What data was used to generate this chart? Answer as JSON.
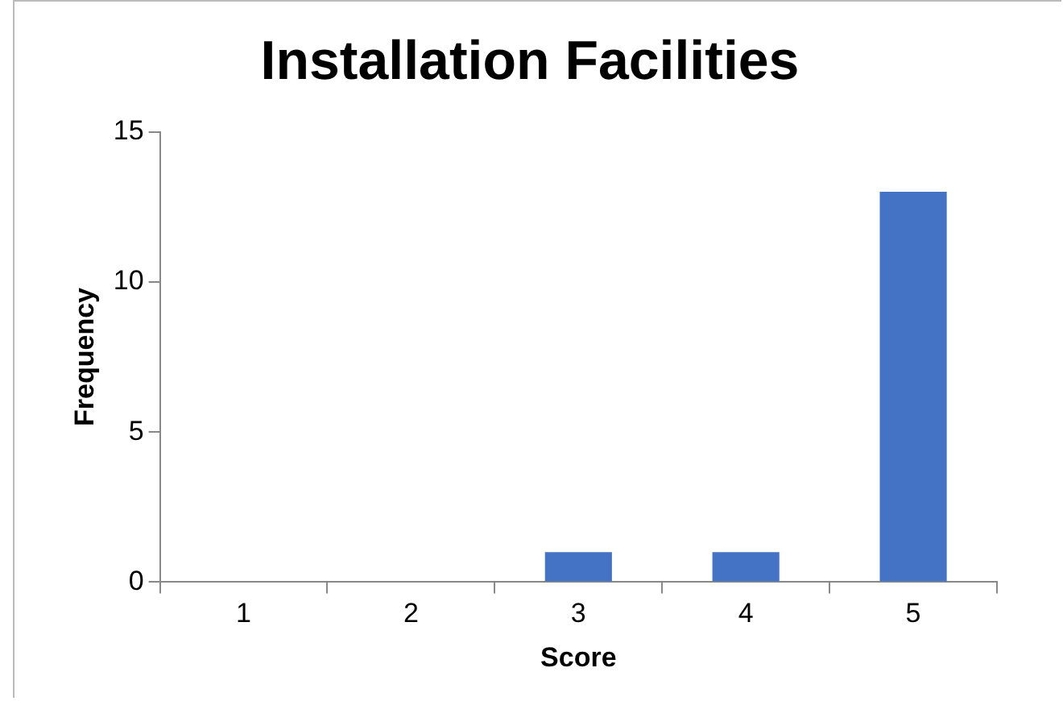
{
  "chart_data": {
    "type": "bar",
    "title": "Installation Facilities",
    "xlabel": "Score",
    "ylabel": "Frequency",
    "categories": [
      "1",
      "2",
      "3",
      "4",
      "5"
    ],
    "values": [
      0,
      0,
      1,
      1,
      13
    ],
    "color": "#4472c4",
    "ylim": [
      0,
      15
    ],
    "yticks": [
      0,
      5,
      10,
      15
    ],
    "grid": false,
    "legend": false
  }
}
